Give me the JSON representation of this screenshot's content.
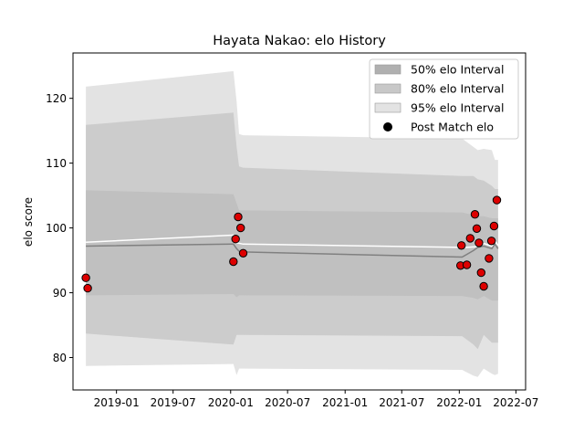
{
  "chart_data": {
    "type": "line",
    "title": "Hayata Nakao: elo History",
    "xlabel": "",
    "ylabel": "elo score",
    "xlim": [
      "2018-08-15",
      "2022-08-01"
    ],
    "ylim": [
      75,
      127
    ],
    "x_ticks": [
      "2019-01",
      "2019-07",
      "2020-01",
      "2020-07",
      "2021-01",
      "2021-07",
      "2022-01",
      "2022-07"
    ],
    "y_ticks": [
      80,
      90,
      100,
      110,
      120
    ],
    "grid": false,
    "legend": {
      "placement": "top-right",
      "entries": [
        {
          "label": "50% elo Interval",
          "color": "#b0b0b0",
          "kind": "patch"
        },
        {
          "label": "80% elo Interval",
          "color": "#c8c8c8",
          "kind": "patch"
        },
        {
          "label": "95% elo Interval",
          "color": "#e3e3e3",
          "kind": "patch"
        },
        {
          "label": "Post Match elo",
          "color": "#000000",
          "kind": "marker"
        }
      ]
    },
    "colors": {
      "band95": "#e3e3e3",
      "band80": "#cccccc",
      "band50": "#c0c0c0",
      "mean_line": "#808080",
      "current_line": "#ffffff",
      "marker_fill": "#dd0000",
      "marker_edge": "#000000"
    },
    "bands": {
      "x": [
        "2018-09-25",
        "2020-01-10",
        "2020-01-20",
        "2020-01-28",
        "2020-02-10",
        "2022-01-10",
        "2022-02-15",
        "2022-03-01",
        "2022-03-20",
        "2022-04-15",
        "2022-04-25",
        "2022-05-05"
      ],
      "p95_upper": [
        121.8,
        124.2,
        119.5,
        114.5,
        114.3,
        113.8,
        112.5,
        112.0,
        112.2,
        112.0,
        110.5,
        110.5
      ],
      "p95_lower": [
        78.7,
        79.0,
        77.3,
        78.3,
        78.3,
        78.1,
        77.2,
        77.0,
        78.3,
        77.5,
        77.3,
        77.5
      ],
      "p80_upper": [
        115.9,
        117.8,
        112.5,
        109.5,
        109.3,
        108.0,
        108.0,
        107.5,
        107.3,
        106.5,
        106.0,
        106.0
      ],
      "p80_lower": [
        83.7,
        82.0,
        83.5,
        83.5,
        83.5,
        83.3,
        82.0,
        81.3,
        83.5,
        82.3,
        82.3,
        82.3
      ],
      "p50_upper": [
        105.8,
        105.2,
        103.8,
        102.7,
        102.7,
        102.4,
        102.0,
        101.8,
        101.8,
        101.5,
        101.5,
        101.5
      ],
      "p50_lower": [
        89.6,
        89.8,
        89.3,
        89.6,
        89.6,
        89.5,
        89.2,
        89.0,
        89.5,
        88.8,
        88.8,
        88.8
      ],
      "mean": [
        97.2,
        97.5,
        96.8,
        96.4,
        96.3,
        95.5,
        96.5,
        97.0,
        97.2,
        96.8,
        97.5,
        96.8
      ]
    },
    "series": [
      {
        "name": "Post Match elo",
        "kind": "scatter",
        "points": [
          {
            "x": "2018-09-25",
            "y": 92.3
          },
          {
            "x": "2018-10-01",
            "y": 90.7
          },
          {
            "x": "2020-01-10",
            "y": 94.8
          },
          {
            "x": "2020-01-17",
            "y": 98.3
          },
          {
            "x": "2020-01-25",
            "y": 101.7
          },
          {
            "x": "2020-02-02",
            "y": 100.0
          },
          {
            "x": "2020-02-10",
            "y": 96.1
          },
          {
            "x": "2022-01-05",
            "y": 94.2
          },
          {
            "x": "2022-01-08",
            "y": 97.3
          },
          {
            "x": "2022-01-25",
            "y": 94.3
          },
          {
            "x": "2022-02-05",
            "y": 98.4
          },
          {
            "x": "2022-02-20",
            "y": 102.1
          },
          {
            "x": "2022-02-26",
            "y": 99.9
          },
          {
            "x": "2022-03-05",
            "y": 97.7
          },
          {
            "x": "2022-03-12",
            "y": 93.1
          },
          {
            "x": "2022-03-20",
            "y": 91.0
          },
          {
            "x": "2022-04-06",
            "y": 95.3
          },
          {
            "x": "2022-04-14",
            "y": 98.0
          },
          {
            "x": "2022-04-22",
            "y": 100.3
          },
          {
            "x": "2022-05-01",
            "y": 104.3
          }
        ]
      },
      {
        "kind": "line",
        "x": [
          "2018-09-25",
          "2020-01-10",
          "2020-01-20",
          "2020-02-10",
          "2022-01-05",
          "2022-01-25",
          "2022-02-20",
          "2022-03-20",
          "2022-04-15",
          "2022-04-25",
          "2022-05-05"
        ],
        "y": [
          97.8,
          98.9,
          97.7,
          97.5,
          97.0,
          97.0,
          97.1,
          97.6,
          97.2,
          98.0,
          97.3
        ]
      }
    ]
  }
}
